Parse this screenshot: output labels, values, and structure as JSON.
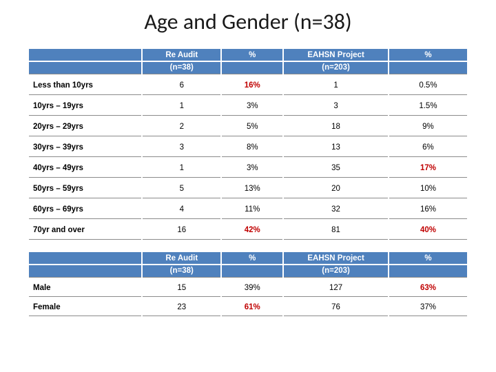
{
  "title": "Age and Gender (n=38)",
  "headers": {
    "reaudit": "Re Audit",
    "reaudit_n": "(n=38)",
    "pct": "%",
    "eahsn": "EAHSN Project",
    "eahsn_n": "(n=203)"
  },
  "age_rows": [
    {
      "label": "Less than 10yrs",
      "ra": "6",
      "rp": "16%",
      "ea": "1",
      "ep": "0.5%",
      "hl_rp": true,
      "hl_ep": false
    },
    {
      "label": "10yrs – 19yrs",
      "ra": "1",
      "rp": "3%",
      "ea": "3",
      "ep": "1.5%",
      "hl_rp": false,
      "hl_ep": false
    },
    {
      "label": "20yrs – 29yrs",
      "ra": "2",
      "rp": "5%",
      "ea": "18",
      "ep": "9%",
      "hl_rp": false,
      "hl_ep": false
    },
    {
      "label": "30yrs – 39yrs",
      "ra": "3",
      "rp": "8%",
      "ea": "13",
      "ep": "6%",
      "hl_rp": false,
      "hl_ep": false
    },
    {
      "label": "40yrs – 49yrs",
      "ra": "1",
      "rp": "3%",
      "ea": "35",
      "ep": "17%",
      "hl_rp": false,
      "hl_ep": true
    },
    {
      "label": "50yrs – 59yrs",
      "ra": "5",
      "rp": "13%",
      "ea": "20",
      "ep": "10%",
      "hl_rp": false,
      "hl_ep": false
    },
    {
      "label": "60yrs – 69yrs",
      "ra": "4",
      "rp": "11%",
      "ea": "32",
      "ep": "16%",
      "hl_rp": false,
      "hl_ep": false
    },
    {
      "label": "70yr and over",
      "ra": "16",
      "rp": "42%",
      "ea": "81",
      "ep": "40%",
      "hl_rp": true,
      "hl_ep": true
    }
  ],
  "gender_rows": [
    {
      "label": "Male",
      "ra": "15",
      "rp": "39%",
      "ea": "127",
      "ep": "63%",
      "hl_rp": false,
      "hl_ep": true
    },
    {
      "label": "Female",
      "ra": "23",
      "rp": "61%",
      "ea": "76",
      "ep": "37%",
      "hl_rp": true,
      "hl_ep": false
    }
  ]
}
